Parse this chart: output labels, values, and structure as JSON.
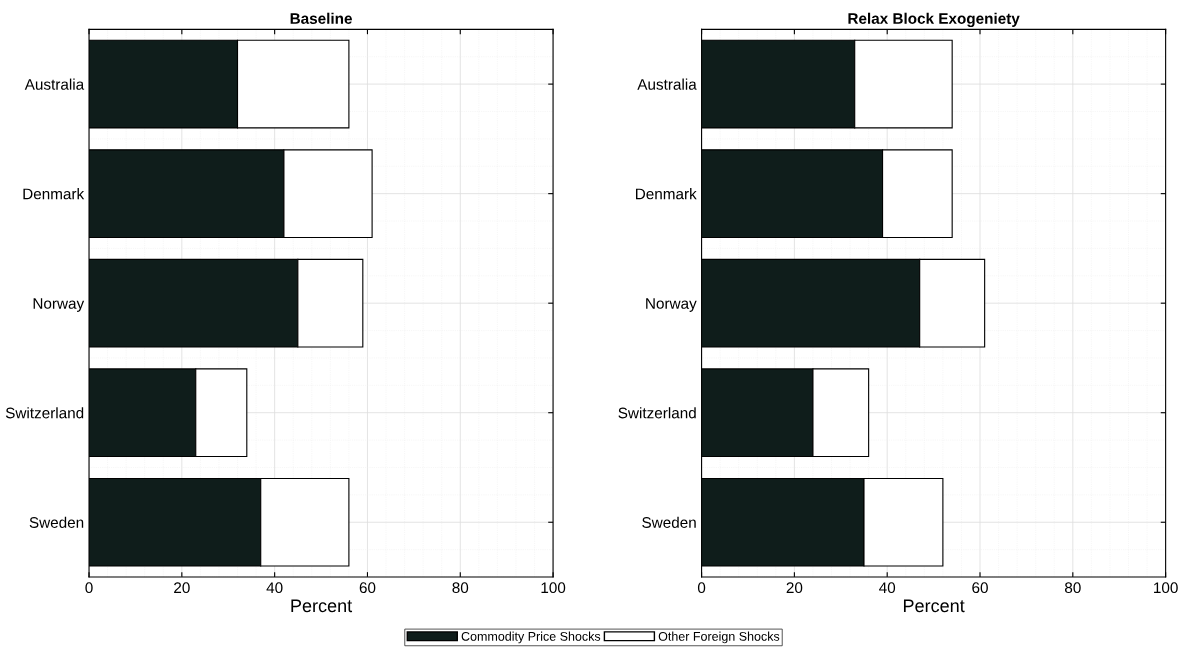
{
  "chart_data": [
    {
      "type": "bar",
      "orientation": "horizontal",
      "stacked": true,
      "title": "Baseline",
      "xlabel": "Percent",
      "categories": [
        "Australia",
        "Denmark",
        "Norway",
        "Switzerland",
        "Sweden"
      ],
      "xlim": [
        0,
        100
      ],
      "xticks": [
        0,
        20,
        40,
        60,
        80,
        100
      ],
      "grid": true,
      "legend": "bottom",
      "series": [
        {
          "name": "Commodity Price Shocks",
          "color": "#0f1d1b",
          "values": [
            32,
            42,
            45,
            23,
            37
          ]
        },
        {
          "name": "Other Foreign Shocks",
          "color": "#ffffff",
          "values": [
            24,
            19,
            14,
            11,
            19
          ]
        }
      ]
    },
    {
      "type": "bar",
      "orientation": "horizontal",
      "stacked": true,
      "title": "Relax Block Exogeniety",
      "xlabel": "Percent",
      "categories": [
        "Australia",
        "Denmark",
        "Norway",
        "Switzerland",
        "Sweden"
      ],
      "xlim": [
        0,
        100
      ],
      "xticks": [
        0,
        20,
        40,
        60,
        80,
        100
      ],
      "grid": true,
      "series": [
        {
          "color": "#0f1d1b",
          "values": [
            33,
            39,
            47,
            24,
            35
          ]
        },
        {
          "color": "#ffffff",
          "values": [
            21,
            15,
            14,
            12,
            17
          ]
        }
      ]
    }
  ]
}
